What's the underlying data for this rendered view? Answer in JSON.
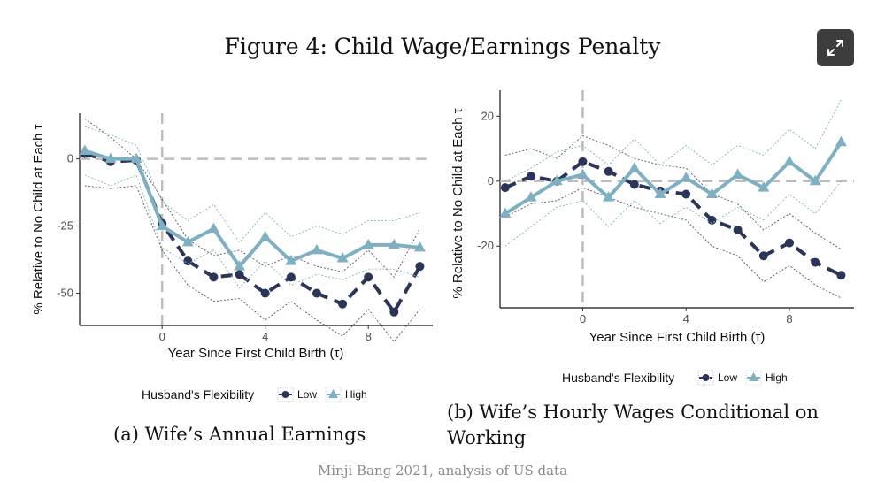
{
  "figure": {
    "title": "Figure 4: Child Wage/Earnings Penalty",
    "source": "Minji Bang 2021, analysis of US data",
    "expand_icon": "expand-arrows-icon"
  },
  "colors": {
    "low": "#2b3557",
    "high": "#7fb0c2",
    "ref": "#bdbdbd",
    "ci": "#555555"
  },
  "chart_data": [
    {
      "type": "line",
      "caption": "(a) Wife’s Annual Earnings",
      "xlabel": "Year Since First Child Birth (τ)",
      "ylabel": "% Relative to No Child at Each τ",
      "xlim": [
        -3.2,
        10.5
      ],
      "ylim": [
        -62,
        17
      ],
      "xticks": [
        "0",
        "4",
        "8"
      ],
      "xtick_values": [
        0,
        4,
        8
      ],
      "yticks": [
        "0",
        "-25",
        "-50"
      ],
      "ytick_values": [
        0,
        -25,
        -50
      ],
      "x": [
        -3,
        -2,
        -1,
        0,
        1,
        2,
        3,
        4,
        5,
        6,
        7,
        8,
        9,
        10
      ],
      "series": [
        {
          "name": "Low",
          "values": [
            2,
            -1,
            -0.5,
            -24,
            -38,
            -44,
            -43,
            -50,
            -44,
            -50,
            -54,
            -44,
            -57,
            -40
          ],
          "ci_upper": [
            15,
            8,
            0,
            -15,
            -30,
            -36,
            -34,
            -40,
            -36,
            -40,
            -42,
            -34,
            -44,
            -26
          ],
          "ci_lower": [
            -10,
            -11,
            -10,
            -34,
            -47,
            -53,
            -52,
            -60,
            -53,
            -60,
            -66,
            -56,
            -68,
            -56
          ]
        },
        {
          "name": "High",
          "values": [
            3,
            0,
            0,
            -25,
            -31,
            -26,
            -40,
            -29,
            -38,
            -34,
            -37,
            -32,
            -32,
            -33
          ],
          "ci_upper": [
            12,
            9,
            5,
            -16,
            -23,
            -17,
            -31,
            -20,
            -29,
            -25,
            -28,
            -23,
            -23,
            -20
          ],
          "ci_lower": [
            -6,
            -10,
            -6,
            -33,
            -39,
            -34,
            -48,
            -38,
            -47,
            -43,
            -45,
            -41,
            -41,
            -44
          ]
        }
      ],
      "reference_lines": {
        "x": 0,
        "y": 0
      },
      "legend": {
        "title": "Husband's Flexibility",
        "placement": "bottom",
        "labels": [
          "Low",
          "High"
        ]
      }
    },
    {
      "type": "line",
      "caption": "(b) Wife’s Hourly Wages Conditional on Working",
      "xlabel": "Year Since First Child Birth (τ)",
      "ylabel": "% Relative to No Child at Each τ",
      "xlim": [
        -3.2,
        10.5
      ],
      "ylim": [
        -39,
        28
      ],
      "xticks": [
        "0",
        "4",
        "8"
      ],
      "xtick_values": [
        0,
        4,
        8
      ],
      "yticks": [
        "20",
        "0",
        "-20"
      ],
      "ytick_values": [
        20,
        0,
        -20
      ],
      "x": [
        -3,
        -2,
        -1,
        0,
        1,
        2,
        3,
        4,
        5,
        6,
        7,
        8,
        9,
        10
      ],
      "series": [
        {
          "name": "Low",
          "values": [
            -2,
            1.5,
            0,
            6,
            3,
            -1,
            -3,
            -4,
            -12,
            -15,
            -23,
            -19,
            -25,
            -29
          ],
          "ci_upper": [
            8,
            10,
            7,
            14,
            11,
            7,
            5,
            4,
            -4,
            -7,
            -15,
            -10,
            -16,
            -21
          ],
          "ci_lower": [
            -11,
            -7,
            -6,
            -2,
            -5,
            -8,
            -10,
            -12,
            -20,
            -23,
            -31,
            -26,
            -32,
            -36
          ]
        },
        {
          "name": "High",
          "values": [
            -10,
            -5,
            0,
            2,
            -5,
            4,
            -4,
            1,
            -4,
            2,
            -2,
            6,
            0,
            12
          ],
          "ci_upper": [
            0,
            4,
            9,
            11,
            5,
            13,
            5,
            11,
            5,
            11,
            8,
            16,
            10,
            25
          ],
          "ci_lower": [
            -20,
            -14,
            -8,
            -6,
            -14,
            -6,
            -13,
            -8,
            -13,
            -8,
            -12,
            -4,
            -10,
            0
          ]
        }
      ],
      "reference_lines": {
        "x": 0,
        "y": 0
      },
      "legend": {
        "title": "Husband's Flexibility",
        "placement": "bottom",
        "labels": [
          "Low",
          "High"
        ]
      }
    }
  ]
}
